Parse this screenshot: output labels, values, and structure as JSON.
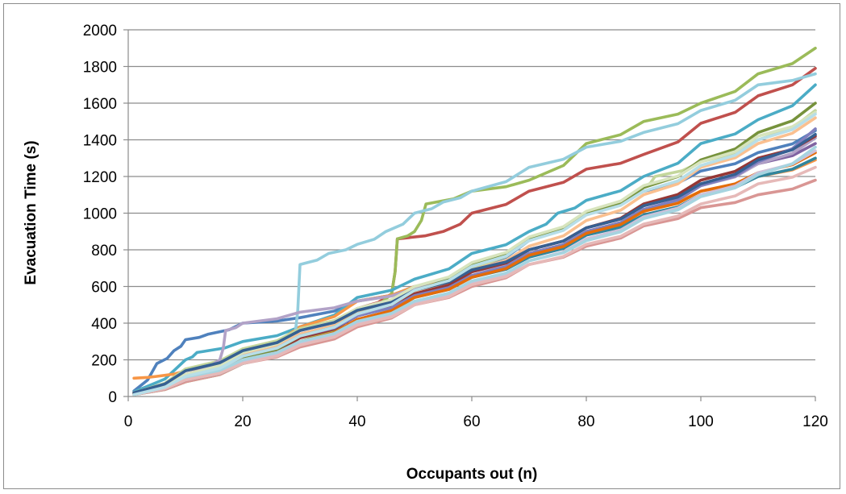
{
  "chart_data": {
    "type": "line",
    "title": "",
    "xlabel": "Occupants out (n)",
    "ylabel": "Evacuation Time (s)",
    "xlim": [
      0,
      120
    ],
    "ylim": [
      0,
      2000
    ],
    "x_ticks": [
      0,
      20,
      40,
      60,
      80,
      100,
      120
    ],
    "y_ticks": [
      0,
      200,
      400,
      600,
      800,
      1000,
      1200,
      1400,
      1600,
      1800,
      2000
    ],
    "grid": "horizontal",
    "legend": "none",
    "series": [
      {
        "color": "#4F81BD",
        "points": [
          [
            1,
            30
          ],
          [
            5,
            180
          ],
          [
            8,
            250
          ],
          [
            10,
            310
          ],
          [
            14,
            340
          ],
          [
            20,
            400
          ],
          [
            30,
            430
          ],
          [
            40,
            520
          ],
          [
            50,
            600
          ],
          [
            60,
            700
          ],
          [
            70,
            850
          ],
          [
            80,
            1000
          ],
          [
            90,
            1120
          ],
          [
            100,
            1230
          ],
          [
            110,
            1330
          ],
          [
            120,
            1450
          ]
        ]
      },
      {
        "color": "#C0504D",
        "points": [
          [
            1,
            20
          ],
          [
            10,
            120
          ],
          [
            20,
            240
          ],
          [
            30,
            360
          ],
          [
            40,
            480
          ],
          [
            46,
            560
          ],
          [
            47,
            860
          ],
          [
            55,
            900
          ],
          [
            60,
            1000
          ],
          [
            70,
            1120
          ],
          [
            80,
            1240
          ],
          [
            90,
            1320
          ],
          [
            100,
            1490
          ],
          [
            110,
            1640
          ],
          [
            120,
            1790
          ]
        ]
      },
      {
        "color": "#9BBB59",
        "points": [
          [
            1,
            10
          ],
          [
            10,
            80
          ],
          [
            20,
            180
          ],
          [
            30,
            300
          ],
          [
            40,
            450
          ],
          [
            46,
            560
          ],
          [
            47,
            860
          ],
          [
            50,
            900
          ],
          [
            52,
            1050
          ],
          [
            60,
            1120
          ],
          [
            70,
            1180
          ],
          [
            80,
            1380
          ],
          [
            90,
            1500
          ],
          [
            100,
            1600
          ],
          [
            110,
            1760
          ],
          [
            120,
            1900
          ]
        ]
      },
      {
        "color": "#8064A2",
        "points": [
          [
            1,
            15
          ],
          [
            10,
            110
          ],
          [
            20,
            230
          ],
          [
            30,
            340
          ],
          [
            40,
            460
          ],
          [
            50,
            560
          ],
          [
            60,
            680
          ],
          [
            70,
            800
          ],
          [
            80,
            920
          ],
          [
            90,
            1040
          ],
          [
            100,
            1160
          ],
          [
            110,
            1270
          ],
          [
            120,
            1380
          ]
        ]
      },
      {
        "color": "#4BACC6",
        "points": [
          [
            1,
            25
          ],
          [
            10,
            200
          ],
          [
            12,
            240
          ],
          [
            20,
            300
          ],
          [
            30,
            380
          ],
          [
            40,
            540
          ],
          [
            50,
            640
          ],
          [
            60,
            780
          ],
          [
            70,
            900
          ],
          [
            75,
            1000
          ],
          [
            80,
            1070
          ],
          [
            90,
            1200
          ],
          [
            100,
            1380
          ],
          [
            110,
            1510
          ],
          [
            120,
            1700
          ]
        ]
      },
      {
        "color": "#F79646",
        "points": [
          [
            1,
            100
          ],
          [
            5,
            110
          ],
          [
            10,
            140
          ],
          [
            20,
            240
          ],
          [
            30,
            380
          ],
          [
            40,
            520
          ],
          [
            50,
            600
          ],
          [
            60,
            660
          ],
          [
            70,
            780
          ],
          [
            80,
            900
          ],
          [
            90,
            1020
          ],
          [
            100,
            1120
          ],
          [
            110,
            1200
          ],
          [
            120,
            1290
          ]
        ]
      },
      {
        "color": "#93CDDD",
        "points": [
          [
            1,
            10
          ],
          [
            10,
            100
          ],
          [
            20,
            200
          ],
          [
            29,
            300
          ],
          [
            30,
            720
          ],
          [
            35,
            780
          ],
          [
            40,
            830
          ],
          [
            45,
            900
          ],
          [
            50,
            1000
          ],
          [
            55,
            1060
          ],
          [
            60,
            1120
          ],
          [
            70,
            1250
          ],
          [
            80,
            1360
          ],
          [
            90,
            1440
          ],
          [
            100,
            1560
          ],
          [
            110,
            1700
          ],
          [
            120,
            1760
          ]
        ]
      },
      {
        "color": "#D99694",
        "points": [
          [
            1,
            10
          ],
          [
            10,
            80
          ],
          [
            20,
            180
          ],
          [
            30,
            270
          ],
          [
            40,
            380
          ],
          [
            50,
            500
          ],
          [
            60,
            600
          ],
          [
            70,
            720
          ],
          [
            80,
            820
          ],
          [
            90,
            930
          ],
          [
            100,
            1030
          ],
          [
            110,
            1100
          ],
          [
            120,
            1180
          ]
        ]
      },
      {
        "color": "#C3D69B",
        "points": [
          [
            1,
            20
          ],
          [
            10,
            150
          ],
          [
            20,
            260
          ],
          [
            30,
            370
          ],
          [
            40,
            480
          ],
          [
            50,
            580
          ],
          [
            60,
            700
          ],
          [
            70,
            860
          ],
          [
            80,
            1000
          ],
          [
            90,
            1140
          ],
          [
            92,
            1200
          ],
          [
            100,
            1280
          ],
          [
            110,
            1400
          ],
          [
            120,
            1560
          ]
        ]
      },
      {
        "color": "#B2A2C7",
        "points": [
          [
            1,
            15
          ],
          [
            10,
            120
          ],
          [
            16,
            200
          ],
          [
            17,
            360
          ],
          [
            20,
            400
          ],
          [
            30,
            460
          ],
          [
            40,
            520
          ],
          [
            50,
            590
          ],
          [
            60,
            680
          ],
          [
            70,
            780
          ],
          [
            80,
            900
          ],
          [
            90,
            1020
          ],
          [
            100,
            1150
          ],
          [
            110,
            1270
          ],
          [
            120,
            1410
          ]
        ]
      },
      {
        "color": "#31859C",
        "points": [
          [
            1,
            10
          ],
          [
            10,
            90
          ],
          [
            20,
            180
          ],
          [
            30,
            290
          ],
          [
            40,
            420
          ],
          [
            50,
            540
          ],
          [
            60,
            650
          ],
          [
            70,
            760
          ],
          [
            80,
            880
          ],
          [
            90,
            990
          ],
          [
            100,
            1100
          ],
          [
            110,
            1200
          ],
          [
            120,
            1300
          ]
        ]
      },
      {
        "color": "#FAC090",
        "points": [
          [
            1,
            20
          ],
          [
            10,
            120
          ],
          [
            20,
            230
          ],
          [
            30,
            340
          ],
          [
            40,
            460
          ],
          [
            50,
            570
          ],
          [
            60,
            690
          ],
          [
            70,
            820
          ],
          [
            80,
            960
          ],
          [
            90,
            1100
          ],
          [
            100,
            1250
          ],
          [
            110,
            1380
          ],
          [
            120,
            1520
          ]
        ]
      },
      {
        "color": "#953735",
        "points": [
          [
            1,
            10
          ],
          [
            10,
            90
          ],
          [
            20,
            200
          ],
          [
            30,
            320
          ],
          [
            40,
            440
          ],
          [
            50,
            560
          ],
          [
            60,
            680
          ],
          [
            70,
            800
          ],
          [
            80,
            920
          ],
          [
            90,
            1050
          ],
          [
            100,
            1180
          ],
          [
            110,
            1300
          ],
          [
            120,
            1420
          ]
        ]
      },
      {
        "color": "#76923C",
        "points": [
          [
            1,
            15
          ],
          [
            10,
            100
          ],
          [
            20,
            210
          ],
          [
            30,
            330
          ],
          [
            40,
            450
          ],
          [
            50,
            580
          ],
          [
            60,
            720
          ],
          [
            70,
            860
          ],
          [
            80,
            1000
          ],
          [
            90,
            1140
          ],
          [
            100,
            1290
          ],
          [
            110,
            1440
          ],
          [
            120,
            1600
          ]
        ]
      },
      {
        "color": "#7F7FBF",
        "points": [
          [
            1,
            10
          ],
          [
            10,
            110
          ],
          [
            20,
            220
          ],
          [
            30,
            330
          ],
          [
            40,
            440
          ],
          [
            50,
            550
          ],
          [
            60,
            660
          ],
          [
            70,
            780
          ],
          [
            80,
            900
          ],
          [
            90,
            1020
          ],
          [
            100,
            1150
          ],
          [
            110,
            1280
          ],
          [
            120,
            1460
          ]
        ]
      },
      {
        "color": "#E46C0A",
        "points": [
          [
            1,
            20
          ],
          [
            10,
            100
          ],
          [
            20,
            200
          ],
          [
            30,
            300
          ],
          [
            40,
            420
          ],
          [
            50,
            540
          ],
          [
            60,
            650
          ],
          [
            70,
            770
          ],
          [
            80,
            890
          ],
          [
            90,
            1010
          ],
          [
            100,
            1120
          ],
          [
            110,
            1220
          ],
          [
            120,
            1330
          ]
        ]
      },
      {
        "color": "#CCC1DA",
        "points": [
          [
            1,
            10
          ],
          [
            10,
            90
          ],
          [
            20,
            190
          ],
          [
            30,
            290
          ],
          [
            40,
            400
          ],
          [
            50,
            510
          ],
          [
            60,
            620
          ],
          [
            70,
            740
          ],
          [
            80,
            860
          ],
          [
            90,
            980
          ],
          [
            100,
            1100
          ],
          [
            110,
            1220
          ],
          [
            120,
            1340
          ]
        ]
      },
      {
        "color": "#A6D4E0",
        "points": [
          [
            1,
            10
          ],
          [
            10,
            100
          ],
          [
            20,
            200
          ],
          [
            30,
            300
          ],
          [
            40,
            410
          ],
          [
            50,
            520
          ],
          [
            60,
            630
          ],
          [
            70,
            740
          ],
          [
            80,
            850
          ],
          [
            90,
            970
          ],
          [
            100,
            1090
          ],
          [
            110,
            1210
          ],
          [
            120,
            1360
          ]
        ]
      },
      {
        "color": "#E6B9B8",
        "points": [
          [
            1,
            10
          ],
          [
            10,
            90
          ],
          [
            20,
            180
          ],
          [
            30,
            280
          ],
          [
            40,
            390
          ],
          [
            50,
            500
          ],
          [
            60,
            610
          ],
          [
            70,
            720
          ],
          [
            80,
            830
          ],
          [
            90,
            940
          ],
          [
            100,
            1050
          ],
          [
            110,
            1160
          ],
          [
            120,
            1250
          ]
        ]
      },
      {
        "color": "#D7E4BD",
        "points": [
          [
            1,
            10
          ],
          [
            10,
            120
          ],
          [
            20,
            240
          ],
          [
            30,
            360
          ],
          [
            40,
            480
          ],
          [
            50,
            600
          ],
          [
            60,
            730
          ],
          [
            70,
            870
          ],
          [
            80,
            1010
          ],
          [
            90,
            1150
          ],
          [
            100,
            1280
          ],
          [
            110,
            1420
          ],
          [
            120,
            1550
          ]
        ]
      },
      {
        "color": "#366092",
        "points": [
          [
            1,
            20
          ],
          [
            10,
            140
          ],
          [
            20,
            250
          ],
          [
            30,
            360
          ],
          [
            40,
            470
          ],
          [
            50,
            580
          ],
          [
            60,
            690
          ],
          [
            70,
            800
          ],
          [
            80,
            920
          ],
          [
            90,
            1040
          ],
          [
            100,
            1160
          ],
          [
            110,
            1290
          ],
          [
            120,
            1430
          ]
        ]
      },
      {
        "color": "#B7DEE8",
        "points": [
          [
            1,
            10
          ],
          [
            10,
            110
          ],
          [
            20,
            220
          ],
          [
            30,
            330
          ],
          [
            40,
            450
          ],
          [
            50,
            580
          ],
          [
            60,
            710
          ],
          [
            70,
            850
          ],
          [
            80,
            990
          ],
          [
            90,
            1120
          ],
          [
            100,
            1260
          ],
          [
            110,
            1400
          ],
          [
            120,
            1540
          ]
        ]
      }
    ]
  }
}
